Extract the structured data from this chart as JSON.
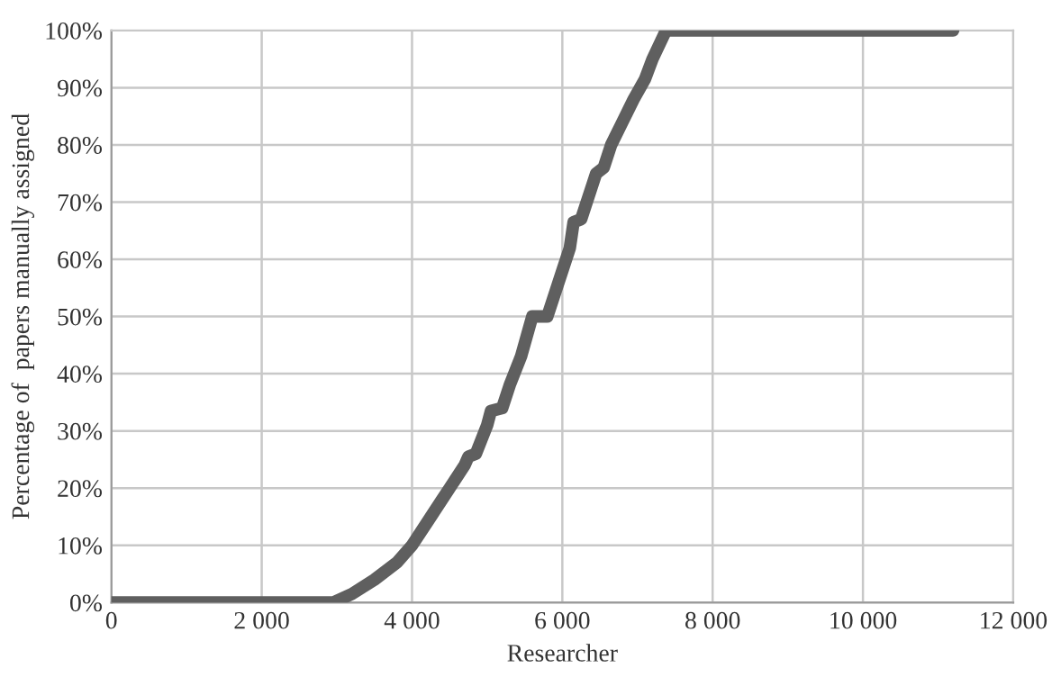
{
  "chart_data": {
    "type": "line",
    "xlabel": "Researcher",
    "ylabel": "Percentage of  papers manually assigned",
    "x": [
      0,
      2950,
      3200,
      3500,
      3800,
      4000,
      4200,
      4400,
      4500,
      4700,
      4750,
      4850,
      5000,
      5050,
      5200,
      5300,
      5450,
      5600,
      5800,
      5900,
      6000,
      6100,
      6150,
      6250,
      6400,
      6450,
      6550,
      6650,
      6800,
      6950,
      7100,
      7200,
      7380,
      11200
    ],
    "series": [
      {
        "color": "#5f5f5f",
        "values": [
          0,
          0,
          1.5,
          4,
          7,
          10,
          14,
          18,
          20,
          24,
          25.5,
          26,
          31,
          33.5,
          34,
          38,
          43,
          50,
          50,
          54,
          58,
          62,
          66.5,
          67,
          73,
          75,
          76,
          80,
          84,
          88,
          91.5,
          95,
          100,
          100
        ]
      }
    ],
    "xlim": [
      0,
      12000
    ],
    "ylim": [
      0,
      100
    ],
    "xticks": [
      0,
      {
        "value": 2000,
        "label": "2 000"
      },
      {
        "value": 4000,
        "label": "4 000"
      },
      {
        "value": 6000,
        "label": "6 000"
      },
      {
        "value": 8000,
        "label": "8 000"
      },
      {
        "value": 10000,
        "label": "10 000"
      },
      {
        "value": 12000,
        "label": "12 000"
      }
    ],
    "yticks": [
      {
        "value": 0,
        "label": "0%"
      },
      {
        "value": 10,
        "label": "10%"
      },
      {
        "value": 20,
        "label": "20%"
      },
      {
        "value": 30,
        "label": "30%"
      },
      {
        "value": 40,
        "label": "40%"
      },
      {
        "value": 50,
        "label": "50%"
      },
      {
        "value": 60,
        "label": "60%"
      },
      {
        "value": 70,
        "label": "70%"
      },
      {
        "value": 80,
        "label": "80%"
      },
      {
        "value": 90,
        "label": "90%"
      },
      {
        "value": 100,
        "label": "100%"
      }
    ],
    "grid": true,
    "marker": "none",
    "line_style": "solid"
  }
}
